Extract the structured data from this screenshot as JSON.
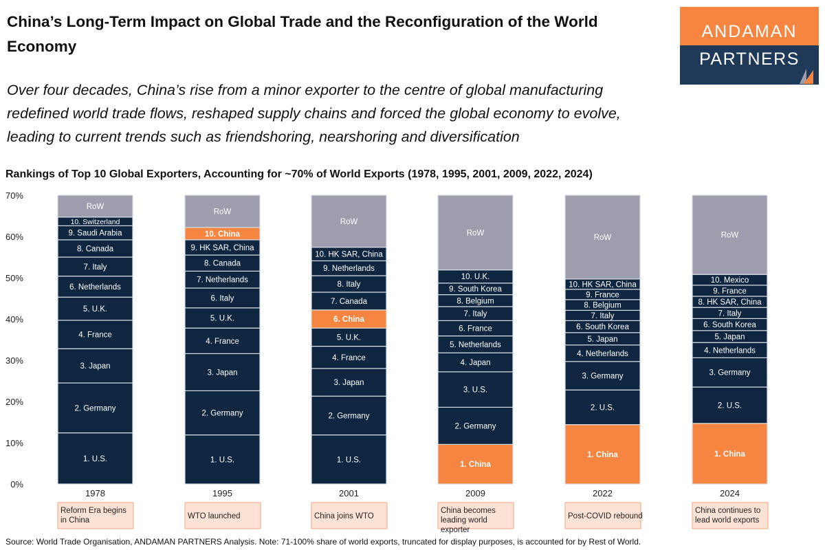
{
  "header": {
    "title": "China’s Long-Term Impact on Global Trade and the Reconfiguration of the World Economy",
    "subtitle": "Over four decades, China’s rise from a minor exporter to the centre of global manufacturing redefined world trade flows, reshaped supply chains and forced the global economy to evolve, leading to current trends such as friendshoring, nearshoring and diversification",
    "logo_top": "ANDAMAN",
    "logo_bottom": "PARTNERS"
  },
  "colors": {
    "other": "#0f2640",
    "china": "#f58540",
    "row": "#9d9dae",
    "logo_top": "#f58540",
    "logo_bottom": "#1e3a58",
    "note_fill": "#fde3d6",
    "note_border": "#f4a57c"
  },
  "chart_data": {
    "type": "bar",
    "stacked": true,
    "title": "Rankings of Top 10 Global Exporters, Accounting for ~70% of World Exports (1978, 1995, 2001, 2009, 2022, 2024)",
    "ylim": [
      0,
      70
    ],
    "yticks": [
      "0%",
      "10%",
      "20%",
      "30%",
      "40%",
      "50%",
      "60%",
      "70%"
    ],
    "grid": false,
    "categories": [
      "1978",
      "1995",
      "2001",
      "2009",
      "2022",
      "2024"
    ],
    "bars": [
      {
        "year": "1978",
        "note": "Reform Era begins in China",
        "segments": [
          {
            "label": "1. U.S.",
            "value": 12.4
          },
          {
            "label": "2. Germany",
            "value": 12.1
          },
          {
            "label": "3. Japan",
            "value": 8.3
          },
          {
            "label": "4. France",
            "value": 6.9
          },
          {
            "label": "5. U.K.",
            "value": 5.6
          },
          {
            "label": "6. Netherlands",
            "value": 5.1
          },
          {
            "label": "7. Italy",
            "value": 4.6
          },
          {
            "label": "8. Canada",
            "value": 4.2
          },
          {
            "label": "9. Saudi Arabia",
            "value": 3.4
          },
          {
            "label": "10. Switzerland",
            "value": 2.1
          },
          {
            "label": "RoW",
            "value": 5.3,
            "row": true
          }
        ]
      },
      {
        "year": "1995",
        "note": "WTO launched",
        "segments": [
          {
            "label": "1. U.S.",
            "value": 11.9
          },
          {
            "label": "2. Germany",
            "value": 10.7
          },
          {
            "label": "3. Japan",
            "value": 9.0
          },
          {
            "label": "4. France",
            "value": 6.2
          },
          {
            "label": "5. U.K.",
            "value": 4.9
          },
          {
            "label": "6. Italy",
            "value": 4.8
          },
          {
            "label": "7. Netherlands",
            "value": 4.1
          },
          {
            "label": "8. Canada",
            "value": 3.9
          },
          {
            "label": "9. HK SAR, China",
            "value": 3.7
          },
          {
            "label": "10. China",
            "value": 3.0,
            "china": true
          },
          {
            "label": "RoW",
            "value": 7.8,
            "row": true
          }
        ]
      },
      {
        "year": "2001",
        "note": "China joins WTO",
        "segments": [
          {
            "label": "1. U.S.",
            "value": 11.9
          },
          {
            "label": "2. Germany",
            "value": 9.4
          },
          {
            "label": "3. Japan",
            "value": 6.7
          },
          {
            "label": "4. France",
            "value": 5.4
          },
          {
            "label": "5. U.K.",
            "value": 4.4
          },
          {
            "label": "6. China",
            "value": 4.4,
            "china": true
          },
          {
            "label": "7. Canada",
            "value": 4.3
          },
          {
            "label": "8. Italy",
            "value": 4.0
          },
          {
            "label": "9. Netherlands",
            "value": 3.6
          },
          {
            "label": "10. HK SAR, China",
            "value": 3.3
          },
          {
            "label": "RoW",
            "value": 12.6,
            "row": true
          }
        ]
      },
      {
        "year": "2009",
        "note": "China becomes leading world exporter",
        "segments": [
          {
            "label": "1. China",
            "value": 9.6,
            "china": true
          },
          {
            "label": "2. Germany",
            "value": 9.0
          },
          {
            "label": "3. U.S.",
            "value": 8.6
          },
          {
            "label": "4. Japan",
            "value": 4.6
          },
          {
            "label": "5. Netherlands",
            "value": 4.1
          },
          {
            "label": "6. France",
            "value": 3.7
          },
          {
            "label": "7. Italy",
            "value": 3.4
          },
          {
            "label": "8. Belgium",
            "value": 2.9
          },
          {
            "label": "9. South Korea",
            "value": 2.8
          },
          {
            "label": "10. U.K.",
            "value": 3.2
          },
          {
            "label": "RoW",
            "value": 18.1,
            "row": true
          }
        ]
      },
      {
        "year": "2022",
        "note": "Post-COVID rebound",
        "segments": [
          {
            "label": "1. China",
            "value": 14.4,
            "china": true
          },
          {
            "label": "2. U.S.",
            "value": 8.4
          },
          {
            "label": "3. Germany",
            "value": 6.9
          },
          {
            "label": "4. Netherlands",
            "value": 4.0
          },
          {
            "label": "5. Japan",
            "value": 3.0
          },
          {
            "label": "6. South Korea",
            "value": 2.9
          },
          {
            "label": "7. Italy",
            "value": 2.5
          },
          {
            "label": "8. Belgium",
            "value": 2.6
          },
          {
            "label": "9. France",
            "value": 2.5
          },
          {
            "label": "10. HK SAR, China",
            "value": 2.5
          },
          {
            "label": "RoW",
            "value": 20.3,
            "row": true
          }
        ]
      },
      {
        "year": "2024",
        "note": "China continues to lead world exports",
        "segments": [
          {
            "label": "1. China",
            "value": 14.7,
            "china": true
          },
          {
            "label": "2. U.S.",
            "value": 8.8
          },
          {
            "label": "3. Germany",
            "value": 7.1
          },
          {
            "label": "4. Netherlands",
            "value": 3.7
          },
          {
            "label": "5. Japan",
            "value": 2.9
          },
          {
            "label": "6. South Korea",
            "value": 2.9
          },
          {
            "label": "7. Italy",
            "value": 2.7
          },
          {
            "label": "8. HK SAR, China",
            "value": 2.7
          },
          {
            "label": "9. France",
            "value": 2.7
          },
          {
            "label": "10. Mexico",
            "value": 2.6
          },
          {
            "label": "RoW",
            "value": 19.2,
            "row": true
          }
        ]
      }
    ]
  },
  "footer": {
    "source": "Source: World Trade Organisation, ANDAMAN PARTNERS Analysis. Note: 71-100% share of world exports, truncated for display purposes, is accounted for by Rest of World."
  }
}
